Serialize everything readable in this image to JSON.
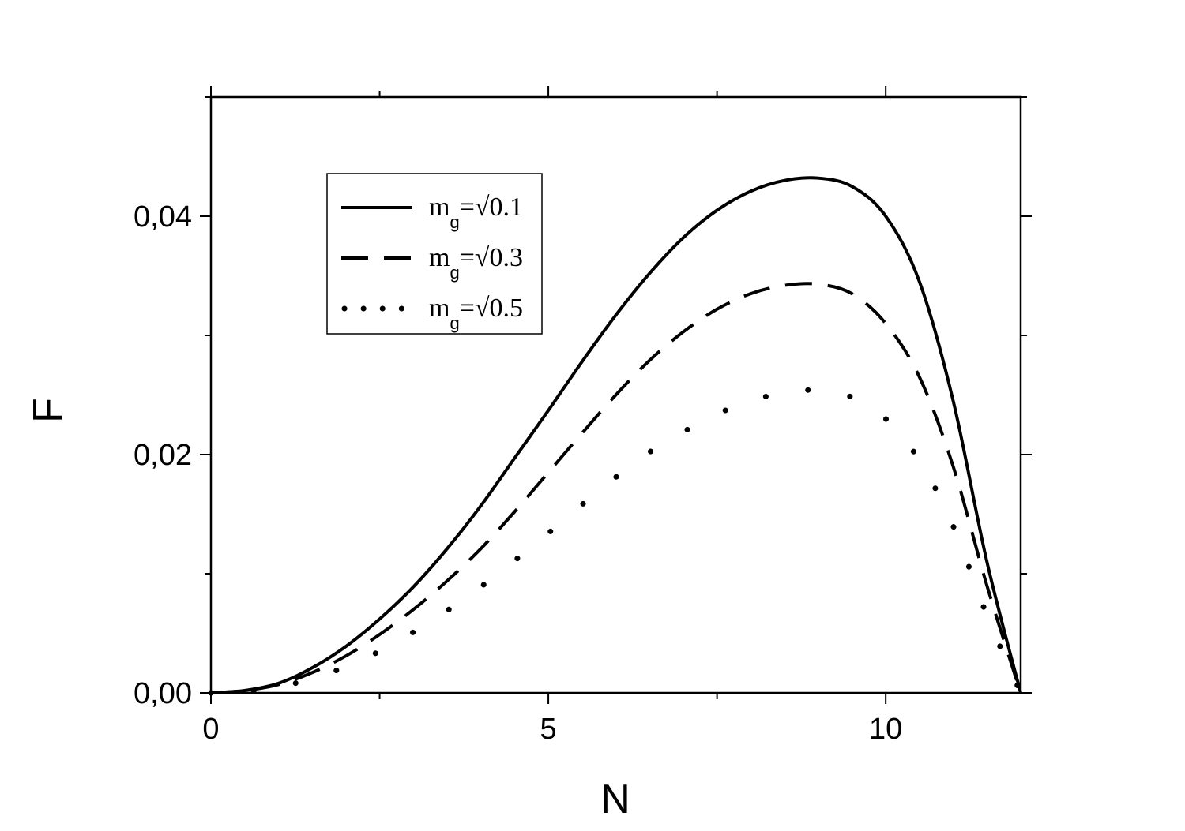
{
  "chart_data": {
    "type": "line",
    "title": "",
    "xlabel": "N",
    "ylabel": "F",
    "xlim": [
      0,
      12
    ],
    "ylim": [
      0,
      0.05
    ],
    "x_ticks": [
      0,
      5,
      10
    ],
    "x_tick_labels": [
      "0",
      "5",
      "10"
    ],
    "y_ticks": [
      0,
      0.02,
      0.04
    ],
    "y_tick_labels": [
      "0,00",
      "0,02",
      "0,04"
    ],
    "grid": false,
    "legend_position": "top-left",
    "x": [
      0,
      0.5,
      1,
      1.5,
      2,
      2.5,
      3,
      3.5,
      4,
      4.5,
      5,
      5.5,
      6,
      6.5,
      7,
      7.5,
      8,
      8.5,
      9,
      9.5,
      10,
      10.5,
      11,
      11.5,
      12
    ],
    "series": [
      {
        "name": "m",
        "name_sub": "g",
        "name_suffix": "=√0.1",
        "style": "solid",
        "values": [
          0,
          0.0002,
          0.0008,
          0.0021,
          0.0039,
          0.0062,
          0.0089,
          0.0121,
          0.0157,
          0.0197,
          0.0237,
          0.0278,
          0.0317,
          0.0352,
          0.0382,
          0.0405,
          0.0421,
          0.043,
          0.0432,
          0.0425,
          0.04,
          0.0345,
          0.0245,
          0.011,
          0
        ]
      },
      {
        "name": "m",
        "name_sub": "g",
        "name_suffix": "=√0.3",
        "style": "dashed",
        "values": [
          0,
          0.0002,
          0.0007,
          0.0017,
          0.0031,
          0.0049,
          0.007,
          0.0094,
          0.0121,
          0.0152,
          0.0185,
          0.0218,
          0.025,
          0.0279,
          0.0303,
          0.0322,
          0.0335,
          0.0342,
          0.0343,
          0.0335,
          0.031,
          0.0265,
          0.019,
          0.009,
          0
        ]
      },
      {
        "name": "m",
        "name_sub": "g",
        "name_suffix": "=√0.5",
        "style": "dotted",
        "values": [
          0,
          0.0001,
          0.0005,
          0.0012,
          0.0022,
          0.0035,
          0.0051,
          0.0069,
          0.0089,
          0.0111,
          0.0134,
          0.0158,
          0.0181,
          0.0202,
          0.0219,
          0.0234,
          0.0245,
          0.0252,
          0.0254,
          0.0248,
          0.023,
          0.0195,
          0.014,
          0.0065,
          0
        ]
      }
    ]
  }
}
